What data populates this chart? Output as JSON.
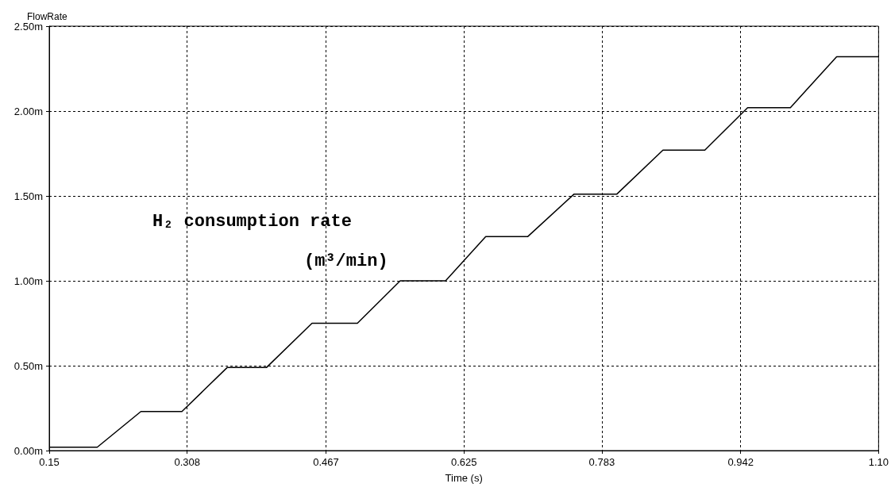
{
  "chart_data": {
    "type": "line",
    "xlabel": "Time (s)",
    "ylabel": "FlowRate",
    "annotations": [
      "H₂ consumption rate",
      "(m³/min)"
    ],
    "series": [
      {
        "color": "#000000",
        "x": [
          0.15,
          0.205,
          0.255,
          0.302,
          0.354,
          0.399,
          0.451,
          0.503,
          0.552,
          0.604,
          0.65,
          0.698,
          0.751,
          0.8,
          0.853,
          0.901,
          0.95,
          0.999,
          1.052,
          1.1
        ],
        "values": [
          0.02,
          0.02,
          0.23,
          0.23,
          0.49,
          0.49,
          0.75,
          0.75,
          1.0,
          1.0,
          1.26,
          1.26,
          1.51,
          1.51,
          1.77,
          1.77,
          2.02,
          2.02,
          2.32,
          2.32
        ]
      }
    ],
    "xlim": [
      0.15,
      1.1
    ],
    "xticks": [
      0.15,
      0.308,
      0.467,
      0.625,
      0.783,
      0.942,
      {
        "value": 1.1,
        "label": "1.10"
      }
    ],
    "ylim": [
      0,
      2.5
    ],
    "yticks": [
      {
        "value": 0,
        "label": "0.00m"
      },
      {
        "value": 0.5,
        "label": "0.50m"
      },
      {
        "value": 1,
        "label": "1.00m"
      },
      {
        "value": 1.5,
        "label": "1.50m"
      },
      {
        "value": 2,
        "label": "2.00m"
      },
      {
        "value": 2.5,
        "label": "2.50m"
      }
    ],
    "grid": true,
    "marker": "none",
    "line_style": "solid"
  }
}
